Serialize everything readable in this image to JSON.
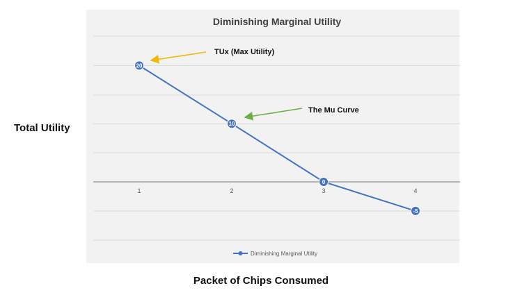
{
  "chart_data": {
    "type": "line",
    "title": "Diminishing Marginal Utility",
    "xlabel": "Packet of Chips Consumed",
    "ylabel": "Total Utility",
    "categories": [
      "1",
      "2",
      "3",
      "4"
    ],
    "series": [
      {
        "name": "Diminishing Marginal Utility",
        "values": [
          20,
          10,
          0,
          -5
        ],
        "data_labels": [
          "20",
          "10",
          "0",
          "-5"
        ],
        "color": "#4472c4"
      }
    ],
    "ylim": [
      -10,
      30
    ],
    "grid": true,
    "legend": "bottom",
    "annotations": [
      {
        "text": "TUx (Max Utility)",
        "target": "1",
        "arrow_color": "#f2b705"
      },
      {
        "text": "The Mu Curve",
        "target": "2",
        "arrow_color": "#70ad47"
      }
    ]
  }
}
